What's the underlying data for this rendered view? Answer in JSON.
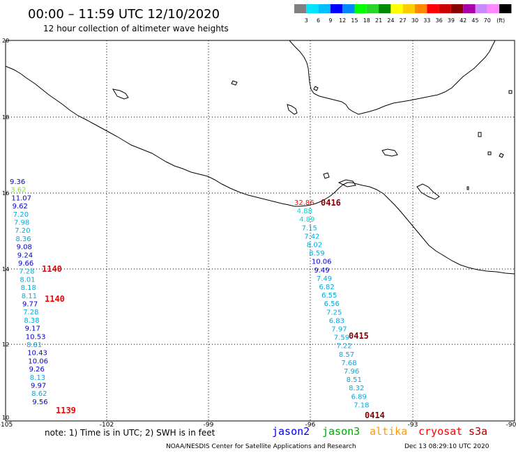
{
  "header": {
    "title": "00:00 – 11:59 UTC 12/10/2020",
    "subtitle": "12 hour collection of altimeter wave heights"
  },
  "legend": {
    "swatches": [
      "#808080",
      "#00e5ff",
      "#00bfff",
      "#0000ff",
      "#0088ff",
      "#00ff00",
      "#2bd42b",
      "#008800",
      "#ffff00",
      "#ffcc00",
      "#ff8800",
      "#ff0000",
      "#cc0000",
      "#880000",
      "#aa00aa",
      "#cc88ff",
      "#ff88ff",
      "#000000"
    ],
    "labels": [
      "3",
      "6",
      "9",
      "12",
      "15",
      "18",
      "21",
      "24",
      "27",
      "30",
      "33",
      "36",
      "39",
      "42",
      "45",
      "70",
      "(ft)"
    ]
  },
  "axes": {
    "x_ticks": [
      "-105",
      "-102",
      "-99",
      "-96",
      "-93",
      "-90"
    ],
    "y_ticks": [
      "20",
      "18",
      "16",
      "14",
      "12",
      "10"
    ]
  },
  "tracks": [
    {
      "name": "track-1139",
      "time": "1139",
      "time_color": "#ff0000",
      "values": [
        {
          "t": "9.36",
          "c": "#0000cc"
        },
        {
          "t": "3.62",
          "c": "#88dd44"
        },
        {
          "t": "11.07",
          "c": "#0000cc"
        },
        {
          "t": "9.62",
          "c": "#0000cc"
        },
        {
          "t": "7.20",
          "c": "#00aadd"
        },
        {
          "t": "7.98",
          "c": "#00aadd"
        },
        {
          "t": "7.20",
          "c": "#00aadd"
        },
        {
          "t": "8.36",
          "c": "#00aadd"
        },
        {
          "t": "9.08",
          "c": "#0000cc"
        },
        {
          "t": "9.24",
          "c": "#0000cc"
        },
        {
          "t": "9.66",
          "c": "#0000cc"
        },
        {
          "t": "7.28",
          "c": "#00aadd"
        },
        {
          "t": "8.01",
          "c": "#00aadd"
        },
        {
          "t": "8.18",
          "c": "#00aadd"
        },
        {
          "t": "8.11",
          "c": "#00aadd"
        },
        {
          "t": "9.77",
          "c": "#0000cc"
        },
        {
          "t": "7.28",
          "c": "#00aadd"
        },
        {
          "t": "8.38",
          "c": "#00aadd"
        },
        {
          "t": "9.17",
          "c": "#0000cc"
        },
        {
          "t": "10.53",
          "c": "#0000cc"
        },
        {
          "t": "8.81",
          "c": "#00aadd"
        },
        {
          "t": "10.43",
          "c": "#0000cc"
        },
        {
          "t": "10.06",
          "c": "#0000cc"
        },
        {
          "t": "9.26",
          "c": "#0000cc"
        },
        {
          "t": "8.13",
          "c": "#00aadd"
        },
        {
          "t": "9.97",
          "c": "#0000cc"
        },
        {
          "t": "8.62",
          "c": "#00aadd"
        },
        {
          "t": "9.56",
          "c": "#0000cc"
        }
      ]
    },
    {
      "name": "track-0415",
      "time": "0415",
      "time_color": "#880000",
      "values": [
        {
          "t": "32.86",
          "c": "#ff0000"
        },
        {
          "t": "4.88",
          "c": "#00dddd"
        },
        {
          "t": "4.89",
          "c": "#00dddd"
        },
        {
          "t": "7.15",
          "c": "#00aadd"
        },
        {
          "t": "7.42",
          "c": "#00aadd"
        },
        {
          "t": "8.02",
          "c": "#00aadd"
        },
        {
          "t": "8.59",
          "c": "#00aadd"
        },
        {
          "t": "10.06",
          "c": "#0000cc"
        },
        {
          "t": "9.49",
          "c": "#0000cc"
        },
        {
          "t": "7.49",
          "c": "#00aadd"
        },
        {
          "t": "6.82",
          "c": "#00aadd"
        },
        {
          "t": "6.55",
          "c": "#00aadd"
        },
        {
          "t": "6.56",
          "c": "#00aadd"
        },
        {
          "t": "7.25",
          "c": "#00aadd"
        },
        {
          "t": "6.83",
          "c": "#00aadd"
        },
        {
          "t": "7.97",
          "c": "#00aadd"
        },
        {
          "t": "7.59",
          "c": "#00aadd"
        },
        {
          "t": "7.22",
          "c": "#00aadd"
        },
        {
          "t": "8.57",
          "c": "#00aadd"
        },
        {
          "t": "7.68",
          "c": "#00aadd"
        },
        {
          "t": "7.96",
          "c": "#00aadd"
        },
        {
          "t": "8.51",
          "c": "#00aadd"
        },
        {
          "t": "8.32",
          "c": "#00aadd"
        },
        {
          "t": "6.89",
          "c": "#00aadd"
        },
        {
          "t": "7.18",
          "c": "#00aadd"
        }
      ]
    }
  ],
  "time_labels": [
    {
      "t": "1140",
      "c": "#ff0000"
    },
    {
      "t": "1140",
      "c": "#ff0000"
    },
    {
      "t": "1139",
      "c": "#ff0000"
    },
    {
      "t": "0416",
      "c": "#880000"
    },
    {
      "t": "0415",
      "c": "#880000"
    },
    {
      "t": "0414",
      "c": "#880000"
    }
  ],
  "footer": {
    "note": "note:  1) Time is in UTC;  2) SWH is in feet",
    "satellites": [
      {
        "name": "jason2",
        "color": "#0000ff"
      },
      {
        "name": "jason3",
        "color": "#00aa00"
      },
      {
        "name": "altika",
        "color": "#ff9900"
      },
      {
        "name": "cryosat",
        "color": "#ff0000"
      },
      {
        "name": "s3a",
        "color": "#aa0000"
      }
    ],
    "credit": "NOAA/NESDIS Center for Satellite Applications and Research",
    "timestamp": "Dec 13 08:29:10 UTC 2020"
  }
}
